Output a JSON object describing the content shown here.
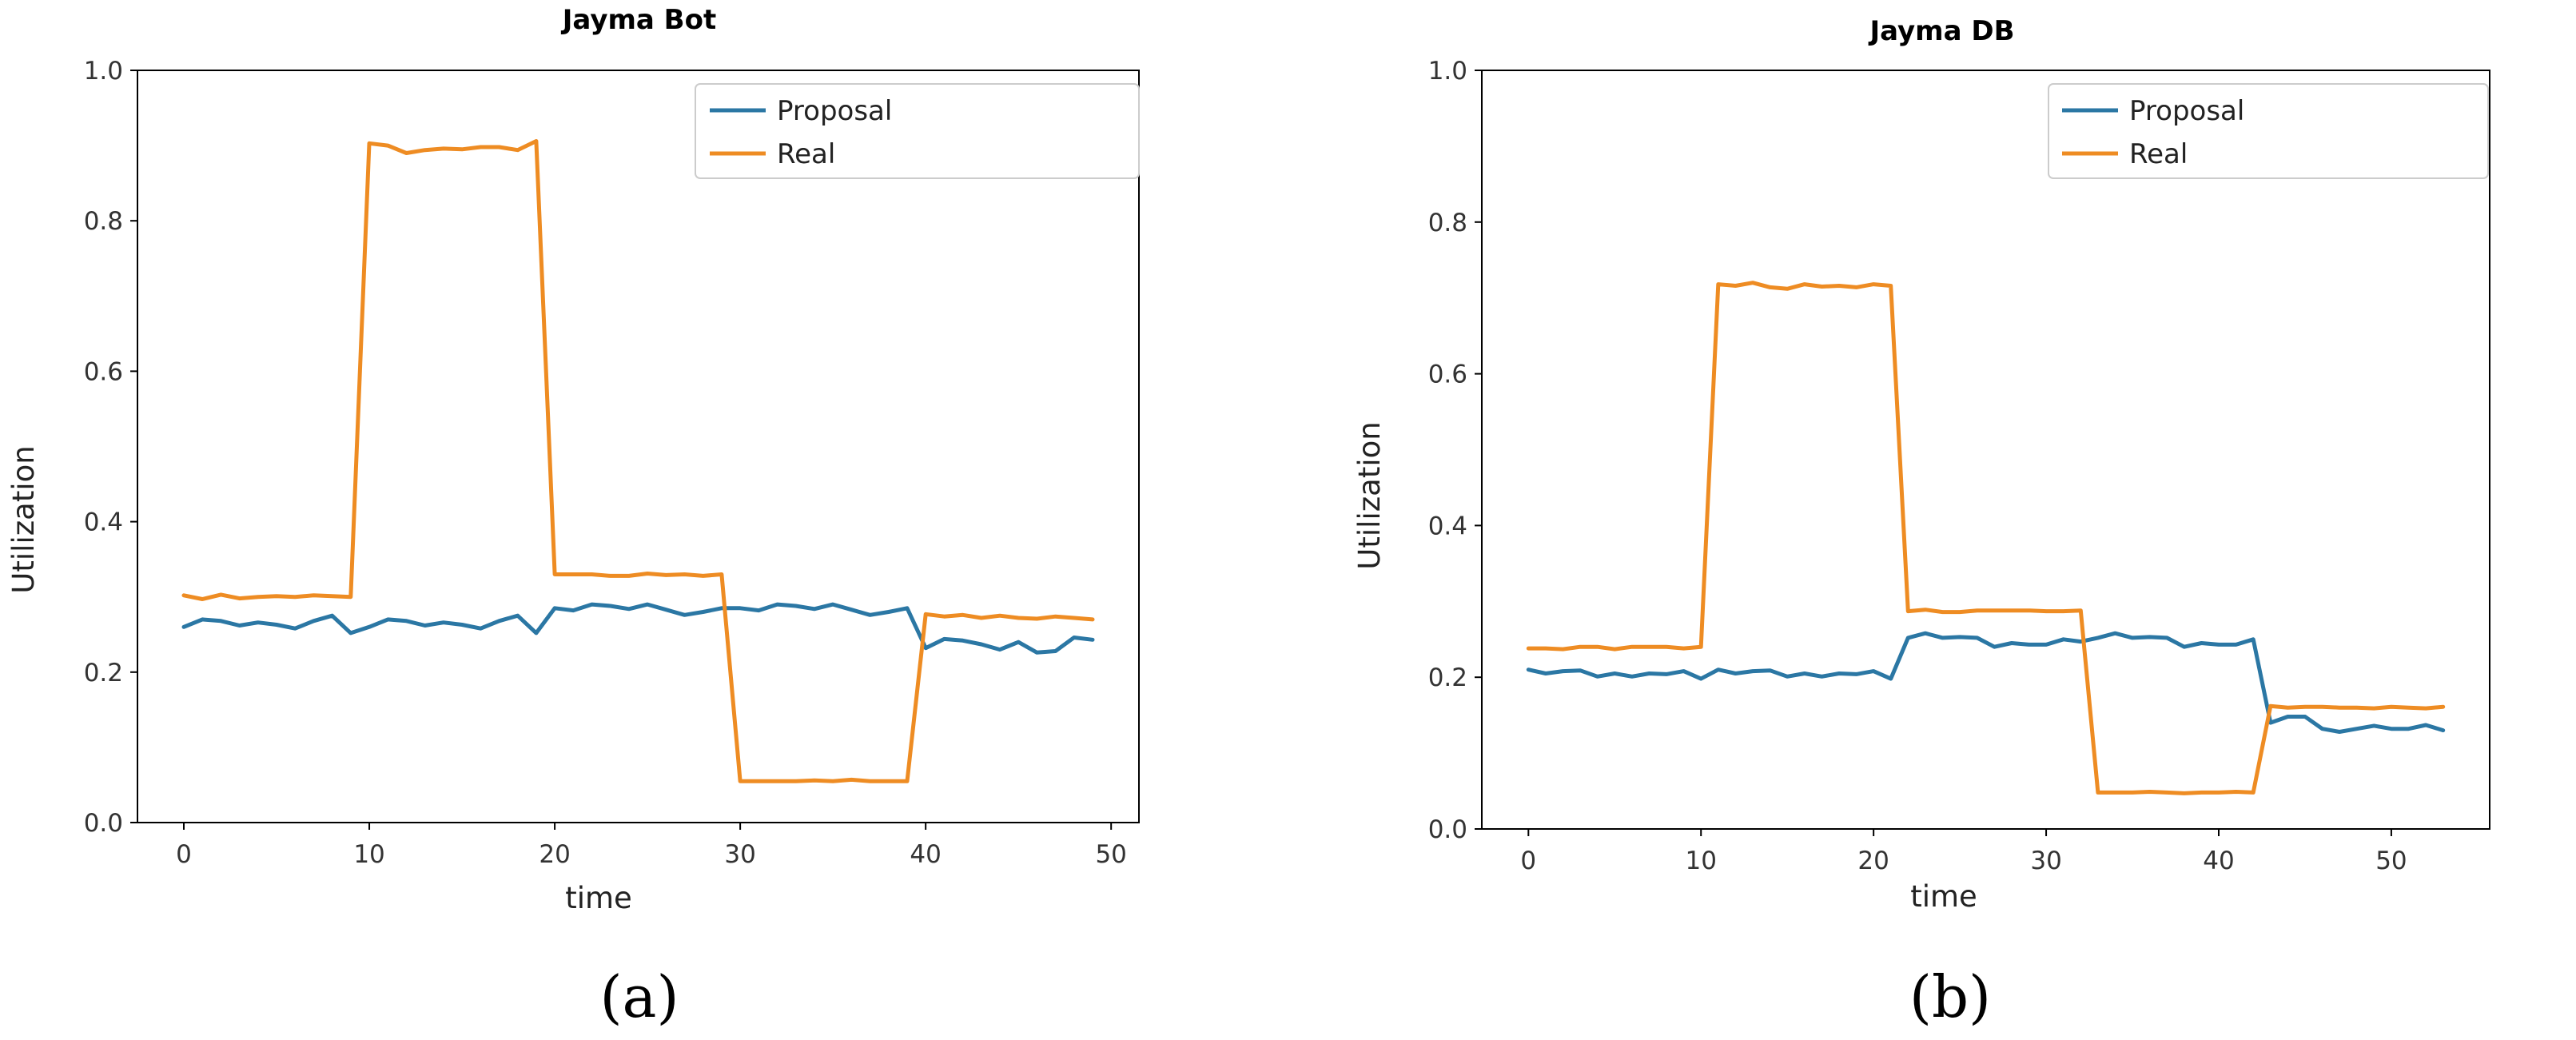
{
  "chart_data": [
    {
      "type": "line",
      "title": "Jayma Bot",
      "xlabel": "time",
      "ylabel": "Utilization",
      "panel_label": "(a)",
      "xlim": [
        -2.5,
        51.5
      ],
      "ylim": [
        0,
        1.0
      ],
      "xticks": [
        0,
        10,
        20,
        30,
        40,
        50
      ],
      "yticks": [
        0.0,
        0.2,
        0.4,
        0.6,
        0.8,
        1.0
      ],
      "legend": "top-right",
      "series": [
        {
          "name": "Proposal",
          "color": "#2b77a4",
          "x": [
            0,
            1,
            2,
            3,
            4,
            5,
            6,
            7,
            8,
            9,
            10,
            11,
            12,
            13,
            14,
            15,
            16,
            17,
            18,
            19,
            20,
            21,
            22,
            23,
            24,
            25,
            26,
            27,
            28,
            29,
            30,
            31,
            32,
            33,
            34,
            35,
            36,
            37,
            38,
            39,
            40,
            41,
            42,
            43,
            44,
            45,
            46,
            47,
            48,
            49
          ],
          "y": [
            0.26,
            0.27,
            0.268,
            0.262,
            0.266,
            0.263,
            0.258,
            0.268,
            0.275,
            0.252,
            0.26,
            0.27,
            0.268,
            0.262,
            0.266,
            0.263,
            0.258,
            0.268,
            0.275,
            0.252,
            0.285,
            0.282,
            0.29,
            0.288,
            0.284,
            0.29,
            0.283,
            0.276,
            0.28,
            0.285,
            0.285,
            0.282,
            0.29,
            0.288,
            0.284,
            0.29,
            0.283,
            0.276,
            0.28,
            0.285,
            0.232,
            0.244,
            0.242,
            0.237,
            0.23,
            0.24,
            0.226,
            0.228,
            0.246,
            0.243
          ]
        },
        {
          "name": "Real",
          "color": "#ee8c23",
          "x": [
            0,
            1,
            2,
            3,
            4,
            5,
            6,
            7,
            8,
            9,
            10,
            11,
            12,
            13,
            14,
            15,
            16,
            17,
            18,
            19,
            20,
            21,
            22,
            23,
            24,
            25,
            26,
            27,
            28,
            29,
            30,
            31,
            32,
            33,
            34,
            35,
            36,
            37,
            38,
            39,
            40,
            41,
            42,
            43,
            44,
            45,
            46,
            47,
            48,
            49
          ],
          "y": [
            0.302,
            0.297,
            0.303,
            0.298,
            0.3,
            0.301,
            0.3,
            0.302,
            0.301,
            0.3,
            0.903,
            0.9,
            0.89,
            0.894,
            0.896,
            0.895,
            0.898,
            0.898,
            0.894,
            0.906,
            0.33,
            0.33,
            0.33,
            0.328,
            0.328,
            0.331,
            0.329,
            0.33,
            0.328,
            0.33,
            0.055,
            0.055,
            0.055,
            0.055,
            0.056,
            0.055,
            0.057,
            0.055,
            0.055,
            0.055,
            0.277,
            0.274,
            0.276,
            0.272,
            0.275,
            0.272,
            0.271,
            0.274,
            0.272,
            0.27
          ]
        }
      ]
    },
    {
      "type": "line",
      "title": "Jayma DB",
      "xlabel": "time",
      "ylabel": "Utilization",
      "panel_label": "(b)",
      "xlim": [
        -2.7,
        55.7
      ],
      "ylim": [
        0,
        1.0
      ],
      "xticks": [
        0,
        10,
        20,
        30,
        40,
        50
      ],
      "yticks": [
        0.0,
        0.2,
        0.4,
        0.6,
        0.8,
        1.0
      ],
      "legend": "top-right",
      "series": [
        {
          "name": "Proposal",
          "color": "#2b77a4",
          "x": [
            0,
            1,
            2,
            3,
            4,
            5,
            6,
            7,
            8,
            9,
            10,
            11,
            12,
            13,
            14,
            15,
            16,
            17,
            18,
            19,
            20,
            21,
            22,
            23,
            24,
            25,
            26,
            27,
            28,
            29,
            30,
            31,
            32,
            33,
            34,
            35,
            36,
            37,
            38,
            39,
            40,
            41,
            42,
            43,
            44,
            45,
            46,
            47,
            48,
            49,
            50,
            51,
            52,
            53
          ],
          "y": [
            0.21,
            0.205,
            0.208,
            0.209,
            0.201,
            0.205,
            0.201,
            0.205,
            0.204,
            0.208,
            0.198,
            0.21,
            0.205,
            0.208,
            0.209,
            0.201,
            0.205,
            0.201,
            0.205,
            0.204,
            0.208,
            0.198,
            0.252,
            0.258,
            0.252,
            0.253,
            0.252,
            0.24,
            0.245,
            0.243,
            0.243,
            0.25,
            0.247,
            0.252,
            0.258,
            0.252,
            0.253,
            0.252,
            0.24,
            0.245,
            0.243,
            0.243,
            0.25,
            0.14,
            0.148,
            0.148,
            0.132,
            0.128,
            0.132,
            0.136,
            0.132,
            0.132,
            0.137,
            0.13
          ]
        },
        {
          "name": "Real",
          "color": "#ee8c23",
          "x": [
            0,
            1,
            2,
            3,
            4,
            5,
            6,
            7,
            8,
            9,
            10,
            11,
            12,
            13,
            14,
            15,
            16,
            17,
            18,
            19,
            20,
            21,
            22,
            23,
            24,
            25,
            26,
            27,
            28,
            29,
            30,
            31,
            32,
            33,
            34,
            35,
            36,
            37,
            38,
            39,
            40,
            41,
            42,
            43,
            44,
            45,
            46,
            47,
            48,
            49,
            50,
            51,
            52,
            53
          ],
          "y": [
            0.238,
            0.238,
            0.237,
            0.24,
            0.24,
            0.237,
            0.24,
            0.24,
            0.24,
            0.238,
            0.24,
            0.718,
            0.716,
            0.72,
            0.714,
            0.712,
            0.718,
            0.715,
            0.716,
            0.714,
            0.718,
            0.716,
            0.287,
            0.289,
            0.286,
            0.286,
            0.288,
            0.288,
            0.288,
            0.288,
            0.287,
            0.287,
            0.288,
            0.048,
            0.048,
            0.048,
            0.049,
            0.048,
            0.047,
            0.048,
            0.048,
            0.049,
            0.048,
            0.162,
            0.16,
            0.161,
            0.161,
            0.16,
            0.16,
            0.159,
            0.161,
            0.16,
            0.159,
            0.161
          ]
        }
      ]
    }
  ]
}
